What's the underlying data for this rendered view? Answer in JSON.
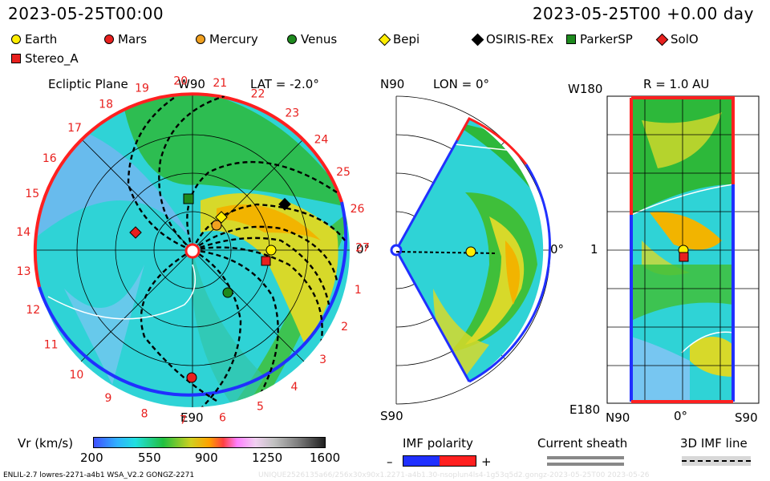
{
  "header": {
    "timestamp": "2023-05-25T00:00",
    "run_time": "2023-05-25T00 +0.00 day"
  },
  "legend": [
    {
      "label": "Earth",
      "color": "#ffee00",
      "shape": "circle"
    },
    {
      "label": "Mars",
      "color": "#e8201e",
      "shape": "circle"
    },
    {
      "label": "Mercury",
      "color": "#f0a020",
      "shape": "circle"
    },
    {
      "label": "Venus",
      "color": "#1e8a1e",
      "shape": "circle"
    },
    {
      "label": "Bepi",
      "color": "#ffee00",
      "shape": "diamond"
    },
    {
      "label": "OSIRIS-REx",
      "color": "#000000",
      "shape": "diamond"
    },
    {
      "label": "ParkerSP",
      "color": "#1e8a1e",
      "shape": "square"
    },
    {
      "label": "SolO",
      "color": "#e8201e",
      "shape": "diamond"
    },
    {
      "label": "Stereo_A",
      "color": "#e8201e",
      "shape": "square"
    }
  ],
  "ecliptic": {
    "title": "Ecliptic Plane",
    "lat": "LAT = -2.0°",
    "top": "W90",
    "bottom": "E90",
    "right": "0°",
    "carrington_numbers": [
      "1",
      "2",
      "3",
      "4",
      "5",
      "6",
      "7",
      "8",
      "9",
      "10",
      "11",
      "12",
      "13",
      "14",
      "15",
      "16",
      "17",
      "18",
      "19",
      "20",
      "21",
      "22",
      "23",
      "24",
      "25",
      "26",
      "27"
    ]
  },
  "meridional": {
    "top": "N90",
    "lon": "LON = 0°",
    "bottom": "S90",
    "right": "0°"
  },
  "sphere": {
    "top_left": "W180",
    "radius": "R = 1.0 AU",
    "mid_left": "1",
    "bottom_left": "E180",
    "xticks": [
      "N90",
      "0°",
      "S90"
    ]
  },
  "colorbar": {
    "label": "Vr (km/s)",
    "ticks": [
      "200",
      "550",
      "900",
      "1250",
      "1600"
    ]
  },
  "imf": {
    "title": "IMF polarity",
    "minus": "–",
    "plus": "+"
  },
  "sheath": {
    "title": "Current sheath"
  },
  "imf3d": {
    "title": "3D IMF line"
  },
  "footer": {
    "left": "ENLIL-2.7 lowres-2271-a4b1 WSA_V2.2 GONGZ-2271",
    "right": "UNIQUE2526135a66/256x30x90x1.2271-a4b1.30-nsoplun4ls4-1g53q5d2.gongz-2023-05-25T00   2023-05-26"
  }
}
